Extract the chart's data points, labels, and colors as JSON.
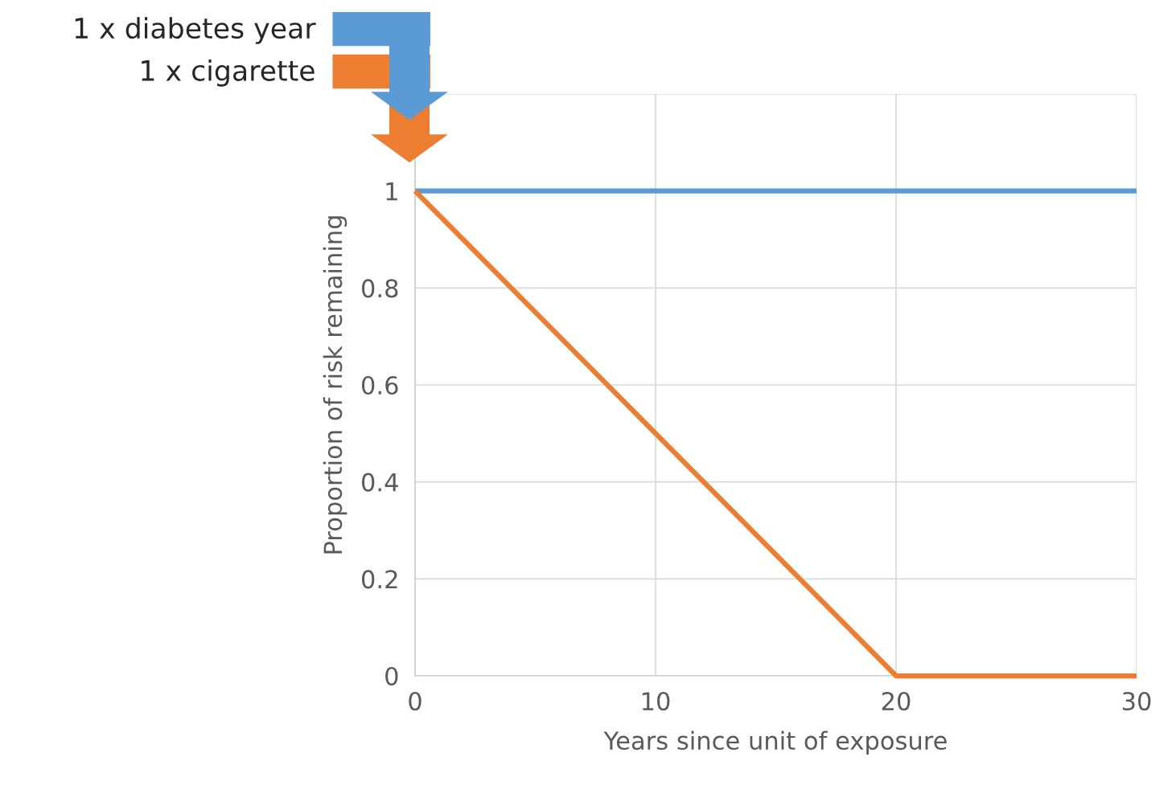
{
  "chart_data": {
    "type": "line",
    "xlabel": "Years since unit of exposure",
    "ylabel": "Proportion of risk remaining",
    "series": [
      {
        "name": "1 x diabetes year",
        "color": "#5b9bd5",
        "x": [
          0,
          30
        ],
        "values": [
          1,
          1
        ]
      },
      {
        "name": "1 x cigarette",
        "color": "#ed7d31",
        "x": [
          0,
          20,
          30
        ],
        "values": [
          1,
          0,
          0
        ]
      }
    ],
    "xlim": [
      0,
      30
    ],
    "xticks": [
      0,
      10,
      20,
      30
    ],
    "ylim": [
      0,
      1.2
    ],
    "yticks": [
      0,
      0.2,
      0.4,
      0.6,
      0.8,
      1,
      {
        "value": 1.2,
        "label": null
      }
    ],
    "grid": true,
    "legend": "top left",
    "marker": "none",
    "line_style": "solid"
  }
}
